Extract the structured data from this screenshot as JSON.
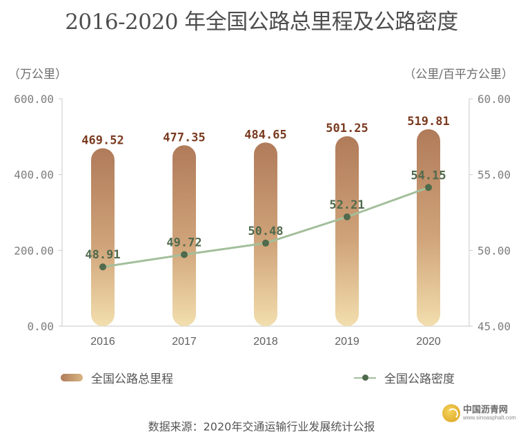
{
  "chart_data": {
    "type": "bar+line",
    "title": "2016-2020 年全国公路总里程及公路密度",
    "categories": [
      "2016",
      "2017",
      "2018",
      "2019",
      "2020"
    ],
    "series": [
      {
        "name": "全国公路总里程",
        "type": "bar",
        "axis": "left",
        "values": [
          469.52,
          477.35,
          484.65,
          501.25,
          519.81
        ],
        "labels": [
          "469.52",
          "477.35",
          "484.65",
          "501.25",
          "519.81"
        ]
      },
      {
        "name": "全国公路密度",
        "type": "line",
        "axis": "right",
        "values": [
          48.91,
          49.72,
          50.48,
          52.21,
          54.15
        ],
        "labels": [
          "48.91",
          "49.72",
          "50.48",
          "52.21",
          "54.15"
        ]
      }
    ],
    "left_axis": {
      "unit": "（万公里）",
      "ylim": [
        0,
        600
      ],
      "ticks": [
        0,
        200,
        400,
        600
      ],
      "tick_labels": [
        "0.00",
        "200.00",
        "400.00",
        "600.00"
      ]
    },
    "right_axis": {
      "unit": "（公里/百平方公里）",
      "ylim": [
        45,
        60
      ],
      "ticks": [
        45,
        50,
        55,
        60
      ],
      "tick_labels": [
        "45.00",
        "50.00",
        "55.00",
        "60.00"
      ]
    },
    "legend_position": "bottom",
    "grid": false
  },
  "source": "数据来源：2020年交通运输行业发展统计公报",
  "watermark": {
    "name": "中国沥青网",
    "url": "www.sinoasphalt.com"
  },
  "colors": {
    "bar_top": "#b07b5a",
    "bar_bottom": "#f2deae",
    "bar_label": "#7a3a1f",
    "line": "#a3bf9b",
    "marker": "#4f6a4c",
    "line_label": "#4f6a4c",
    "axis": "#c9c9c9",
    "tick_text": "#7d7d7d"
  }
}
